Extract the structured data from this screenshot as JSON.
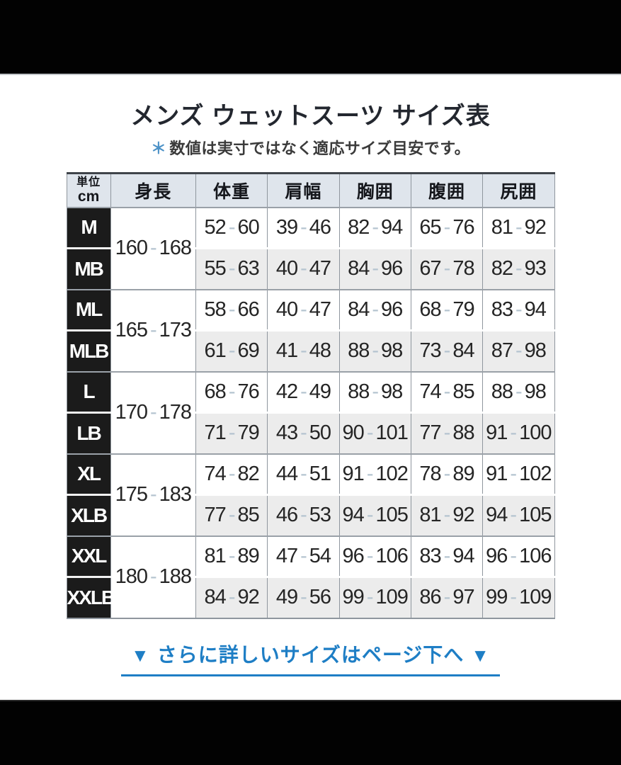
{
  "page": {
    "title": "メンズ ウェットスーツ サイズ表",
    "note_mark": "＊",
    "note_text": "数値は実寸ではなく適応サイズ目安です。",
    "footer_link_text": "さらに詳しいサイズはページ下へ",
    "footer_arrow": "▼"
  },
  "colors": {
    "header_bg": "#dfe5ec",
    "size_cell_bg": "#1b1b1b",
    "alt_row_bg": "#ececec",
    "border_gray": "#8f969e",
    "link_blue": "#1e7ec5",
    "asterisk_blue": "#4d92c7",
    "dash_gray_blue": "#b5c4d0",
    "letterbox_black": "#020202"
  },
  "table": {
    "unit_label_top": "単位",
    "unit_label_bottom": "cm",
    "columns": {
      "height": "身長",
      "weight": "体重",
      "shoulder": "肩幅",
      "chest": "胸囲",
      "waist": "腹囲",
      "hip": "尻囲"
    },
    "groups": [
      {
        "height": "160-168",
        "rows": [
          {
            "size": "M",
            "weight": "52-60",
            "shoulder": "39-46",
            "chest": "82-94",
            "waist": "65-76",
            "hip": "81-92"
          },
          {
            "size": "MB",
            "weight": "55-63",
            "shoulder": "40-47",
            "chest": "84-96",
            "waist": "67-78",
            "hip": "82-93"
          }
        ]
      },
      {
        "height": "165-173",
        "rows": [
          {
            "size": "ML",
            "weight": "58-66",
            "shoulder": "40-47",
            "chest": "84-96",
            "waist": "68-79",
            "hip": "83-94"
          },
          {
            "size": "MLB",
            "weight": "61-69",
            "shoulder": "41-48",
            "chest": "88-98",
            "waist": "73-84",
            "hip": "87-98"
          }
        ]
      },
      {
        "height": "170-178",
        "rows": [
          {
            "size": "L",
            "weight": "68-76",
            "shoulder": "42-49",
            "chest": "88-98",
            "waist": "74-85",
            "hip": "88-98"
          },
          {
            "size": "LB",
            "weight": "71-79",
            "shoulder": "43-50",
            "chest": "90-101",
            "waist": "77-88",
            "hip": "91-100"
          }
        ]
      },
      {
        "height": "175-183",
        "rows": [
          {
            "size": "XL",
            "weight": "74-82",
            "shoulder": "44-51",
            "chest": "91-102",
            "waist": "78-89",
            "hip": "91-102"
          },
          {
            "size": "XLB",
            "weight": "77-85",
            "shoulder": "46-53",
            "chest": "94-105",
            "waist": "81-92",
            "hip": "94-105"
          }
        ]
      },
      {
        "height": "180-188",
        "rows": [
          {
            "size": "XXL",
            "weight": "81-89",
            "shoulder": "47-54",
            "chest": "96-106",
            "waist": "83-94",
            "hip": "96-106"
          },
          {
            "size": "XXLB",
            "weight": "84-92",
            "shoulder": "49-56",
            "chest": "99-109",
            "waist": "86-97",
            "hip": "99-109"
          }
        ]
      }
    ]
  }
}
